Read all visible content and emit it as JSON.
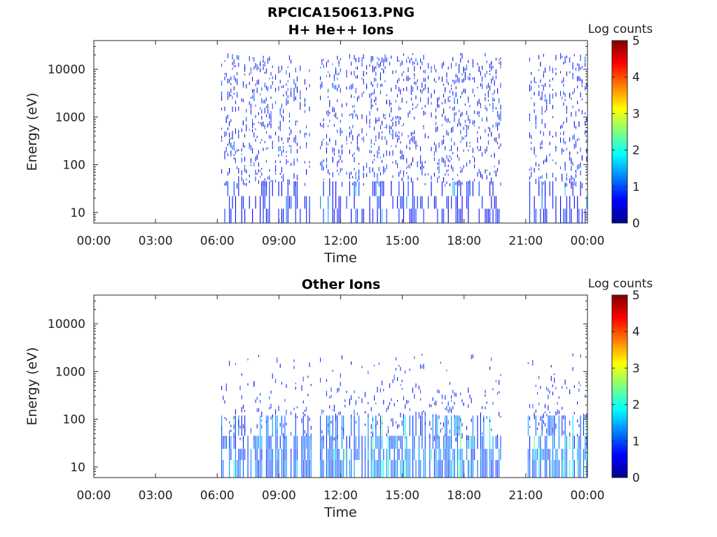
{
  "header": {
    "title": "RPCICA150613.PNG"
  },
  "chart_data": [
    {
      "type": "heatmap",
      "title": "H+ He++ Ions",
      "xlabel": "Time",
      "ylabel": "Energy (eV)",
      "x_tick_labels": [
        "00:00",
        "03:00",
        "06:00",
        "09:00",
        "12:00",
        "15:00",
        "18:00",
        "21:00",
        "00:00"
      ],
      "y_tick_labels": [
        "10",
        "100",
        "1000",
        "10000"
      ],
      "y_ticks": [
        10,
        100,
        1000,
        10000
      ],
      "yscale": "log",
      "xlim_hours": [
        0,
        24
      ],
      "ylim": [
        6,
        40000
      ],
      "colorbar": {
        "label": "Log counts",
        "ticks": [
          "0",
          "1",
          "2",
          "3",
          "4",
          "5"
        ],
        "range": [
          0,
          5
        ],
        "colormap": "jet"
      },
      "data_intervals_hours": [
        [
          6.2,
          10.6
        ],
        [
          11.0,
          19.85
        ],
        [
          21.1,
          23.95
        ]
      ],
      "dominant_level": 0.8,
      "max_level": 1.8
    },
    {
      "type": "heatmap",
      "title": "Other Ions",
      "xlabel": "Time",
      "ylabel": "Energy (eV)",
      "x_tick_labels": [
        "00:00",
        "03:00",
        "06:00",
        "09:00",
        "12:00",
        "15:00",
        "18:00",
        "21:00",
        "00:00"
      ],
      "y_tick_labels": [
        "10",
        "100",
        "1000",
        "10000"
      ],
      "y_ticks": [
        10,
        100,
        1000,
        10000
      ],
      "yscale": "log",
      "xlim_hours": [
        0,
        24
      ],
      "ylim": [
        6,
        40000
      ],
      "colorbar": {
        "label": "Log counts",
        "ticks": [
          "0",
          "1",
          "2",
          "3",
          "4",
          "5"
        ],
        "range": [
          0,
          5
        ],
        "colormap": "jet"
      },
      "data_intervals_hours": [
        [
          6.2,
          10.6
        ],
        [
          11.0,
          19.85
        ],
        [
          21.1,
          23.95
        ]
      ],
      "dominant_level": 1.2,
      "max_level": 2.6
    }
  ]
}
